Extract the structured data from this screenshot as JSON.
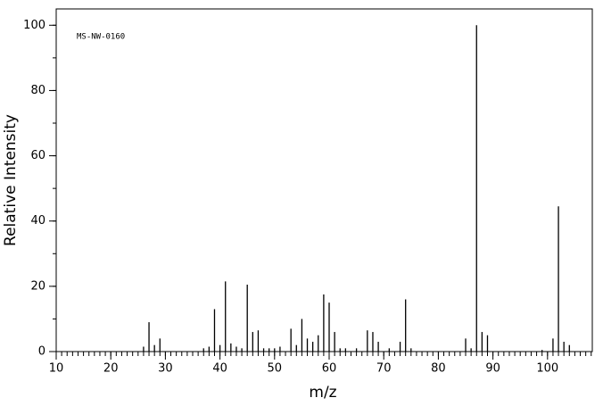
{
  "chart_data": {
    "type": "bar",
    "annotation": "MS-NW-0160",
    "x_label": "m/z",
    "y_label": "Relative Intensity",
    "x": [
      26,
      27,
      28,
      29,
      37,
      38,
      39,
      40,
      41,
      42,
      43,
      44,
      45,
      46,
      47,
      48,
      49,
      50,
      51,
      53,
      54,
      55,
      56,
      57,
      58,
      59,
      60,
      61,
      62,
      63,
      65,
      67,
      68,
      69,
      71,
      73,
      74,
      75,
      85,
      86,
      87,
      88,
      89,
      99,
      101,
      102,
      103,
      104
    ],
    "values": [
      1.5,
      9,
      2,
      4,
      1,
      1.5,
      13,
      2,
      21.5,
      2.5,
      1.5,
      1,
      20.5,
      6,
      6.5,
      1,
      1,
      1,
      1.5,
      7,
      2,
      10,
      4,
      3,
      5,
      17.5,
      15,
      6,
      1,
      1,
      1,
      6.5,
      6,
      3,
      1,
      3,
      16,
      1,
      4,
      1,
      100,
      6,
      5,
      0.5,
      4,
      44.5,
      3,
      2
    ],
    "color": "#000000",
    "xlim": [
      10,
      108.2
    ],
    "xticks": [
      10,
      20,
      30,
      40,
      50,
      60,
      70,
      80,
      90,
      100
    ],
    "x_minor_step": 1,
    "ylim": [
      0,
      105
    ],
    "yticks": [
      0,
      20,
      40,
      60,
      80,
      100
    ],
    "y_minor_step": 10
  }
}
